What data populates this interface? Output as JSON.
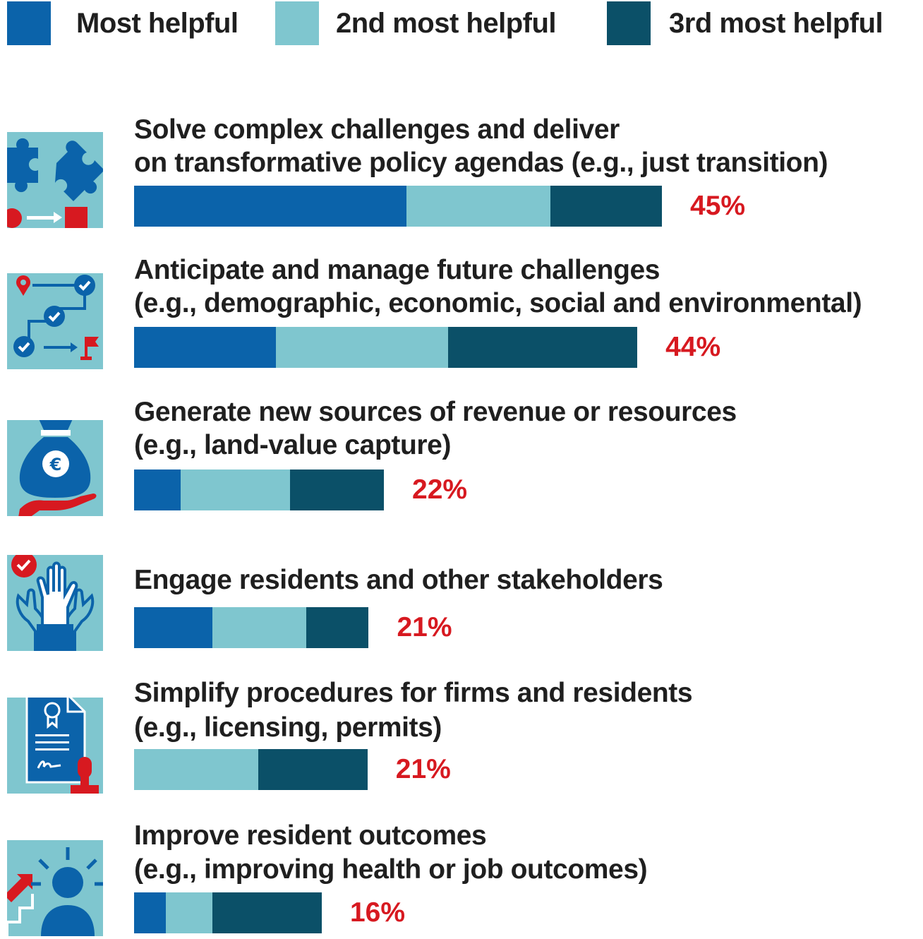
{
  "colors": {
    "most": "#0b63aa",
    "second": "#7fc6cf",
    "third": "#0b5068",
    "total_text": "#d71920",
    "icon_bg": "#7fc6cf",
    "icon_blue": "#0b63aa",
    "icon_red": "#d71920"
  },
  "legend": [
    {
      "label": "Most helpful",
      "color_key": "most"
    },
    {
      "label": "2nd most helpful",
      "color_key": "second"
    },
    {
      "label": "3rd most helpful",
      "color_key": "third"
    }
  ],
  "chart_data": {
    "type": "bar",
    "orientation": "horizontal",
    "stacked": true,
    "value_unit": "%",
    "xlim": [
      0,
      45
    ],
    "grid": false,
    "legend_position": "top",
    "categories": [
      {
        "line1": "Solve complex challenges and deliver",
        "line2": "on transformative policy agendas (e.g., just transition)",
        "icon": "puzzle-icon",
        "total": "45%"
      },
      {
        "line1": "Anticipate and manage future challenges",
        "line2": "(e.g., demographic, economic, social and environmental)",
        "icon": "roadmap-checklist-icon",
        "total": "44%"
      },
      {
        "line1": "Generate new sources of revenue or resources",
        "line2": "(e.g., land-value capture)",
        "icon": "money-bag-euro-icon",
        "total": "22%"
      },
      {
        "line1": "Engage residents and other stakeholders",
        "line2": "",
        "icon": "raised-hands-icon",
        "total": "21%"
      },
      {
        "line1": "Simplify procedures for firms and residents",
        "line2": "(e.g., licensing, permits)",
        "icon": "certificate-stamp-icon",
        "total": "21%"
      },
      {
        "line1": "Improve resident outcomes",
        "line2": "(e.g., improving health or job outcomes)",
        "icon": "person-growth-icon",
        "total": "16%"
      }
    ],
    "series": [
      {
        "name": "Most helpful",
        "values": [
          23.2,
          12.1,
          4.0,
          6.7,
          0,
          2.7
        ]
      },
      {
        "name": "2nd most helpful",
        "values": [
          12.3,
          14.7,
          9.3,
          8.0,
          10.6,
          4.0
        ]
      },
      {
        "name": "3rd most helpful",
        "values": [
          9.5,
          16.1,
          8.0,
          5.3,
          9.3,
          9.3
        ]
      }
    ]
  }
}
